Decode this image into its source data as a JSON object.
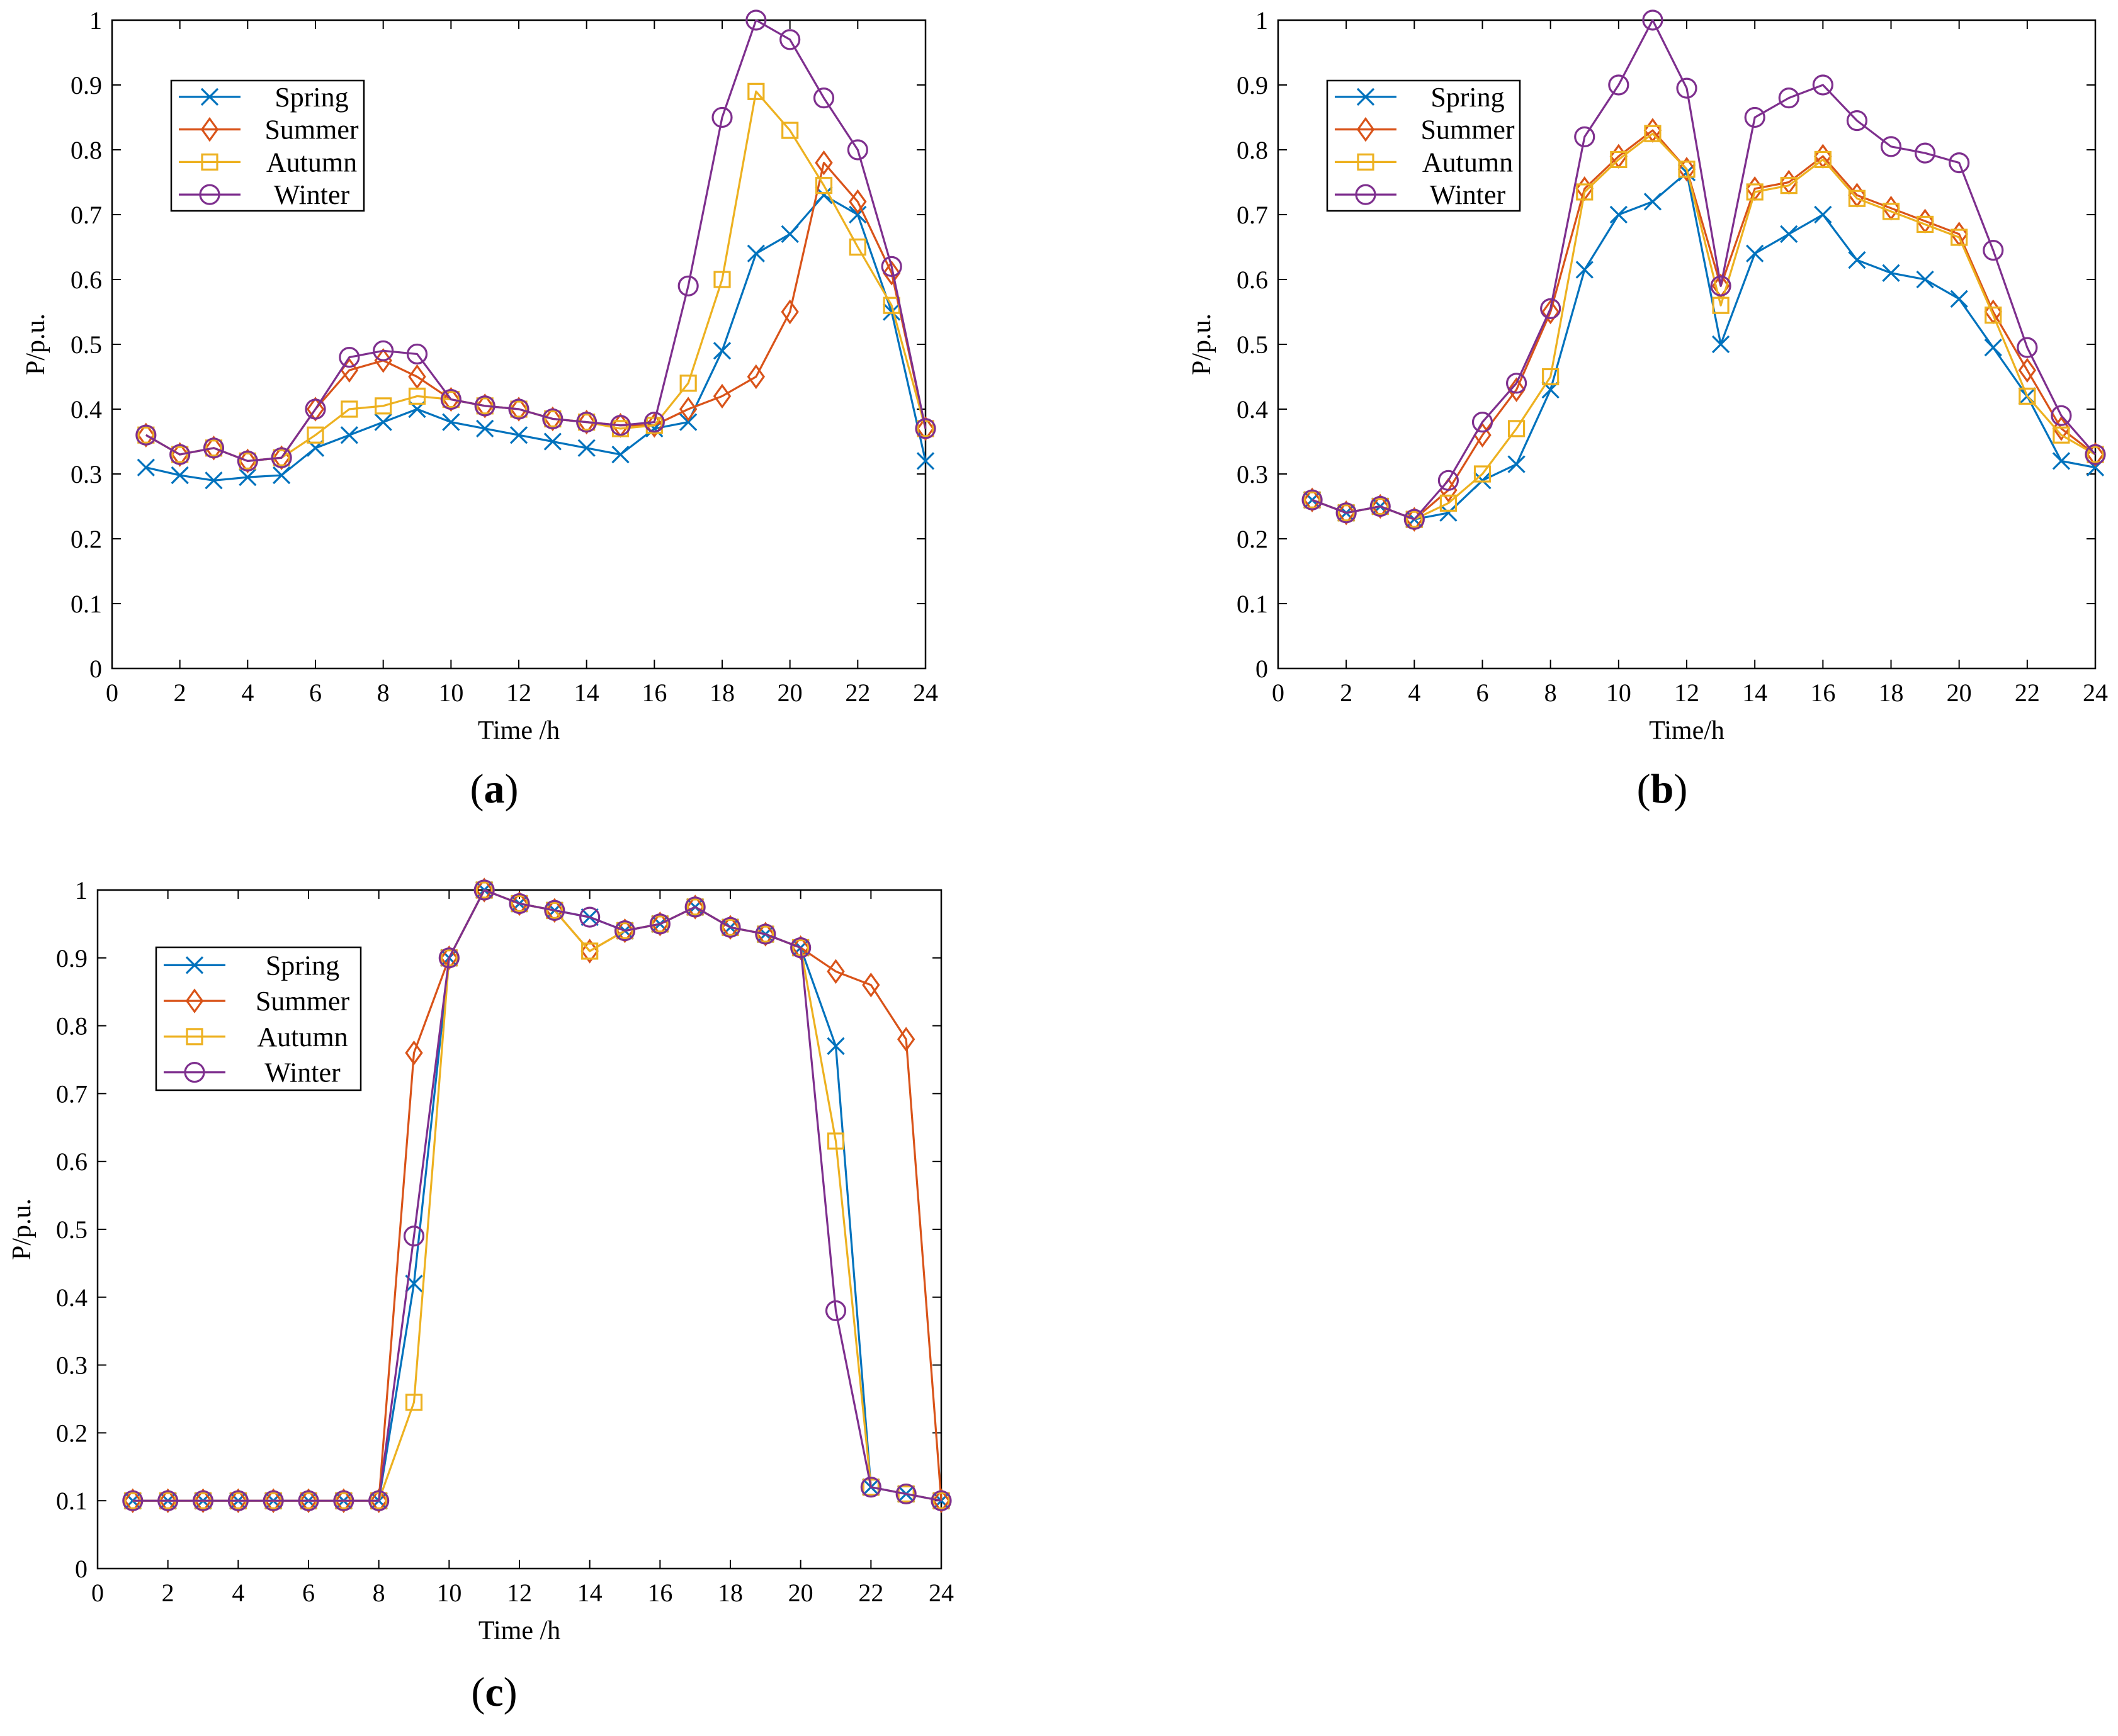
{
  "chart_data": [
    {
      "panel": "a",
      "type": "line",
      "panel_label": "a",
      "xlabel": "Time /h",
      "ylabel": "P/p.u.",
      "xlim": [
        0,
        24
      ],
      "ylim": [
        0,
        1
      ],
      "xticks": [
        "0",
        "2",
        "4",
        "6",
        "8",
        "10",
        "12",
        "14",
        "16",
        "18",
        "20",
        "22",
        "24"
      ],
      "yticks": [
        "0",
        "0.1",
        "0.2",
        "0.3",
        "0.4",
        "0.5",
        "0.6",
        "0.7",
        "0.8",
        "0.9",
        "1"
      ],
      "legend": [
        "Spring",
        "Summer",
        "Autumn",
        "Winter"
      ],
      "legend_position": "top-left",
      "x": [
        1,
        2,
        3,
        4,
        5,
        6,
        7,
        8,
        9,
        10,
        11,
        12,
        13,
        14,
        15,
        16,
        17,
        18,
        19,
        20,
        21,
        22,
        23,
        24
      ],
      "series": [
        {
          "name": "Spring",
          "color": "#0072BD",
          "marker": "x",
          "values": [
            0.31,
            0.298,
            0.29,
            0.295,
            0.298,
            0.34,
            0.36,
            0.38,
            0.4,
            0.38,
            0.37,
            0.36,
            0.35,
            0.34,
            0.33,
            0.37,
            0.38,
            0.49,
            0.64,
            0.67,
            0.73,
            0.7,
            0.55,
            0.32
          ]
        },
        {
          "name": "Summer",
          "color": "#D95319",
          "marker": "diamond",
          "values": [
            0.36,
            0.33,
            0.34,
            0.32,
            0.325,
            0.4,
            0.46,
            0.475,
            0.45,
            0.415,
            0.405,
            0.4,
            0.385,
            0.38,
            0.375,
            0.375,
            0.4,
            0.42,
            0.45,
            0.55,
            0.78,
            0.72,
            0.61,
            0.37
          ]
        },
        {
          "name": "Autumn",
          "color": "#EDB120",
          "marker": "square",
          "values": [
            0.36,
            0.33,
            0.34,
            0.32,
            0.325,
            0.36,
            0.4,
            0.405,
            0.42,
            0.415,
            0.405,
            0.4,
            0.385,
            0.38,
            0.37,
            0.375,
            0.44,
            0.6,
            0.89,
            0.83,
            0.745,
            0.65,
            0.56,
            0.37
          ]
        },
        {
          "name": "Winter",
          "color": "#7E2F8E",
          "marker": "circle",
          "values": [
            0.36,
            0.33,
            0.34,
            0.32,
            0.325,
            0.4,
            0.48,
            0.49,
            0.485,
            0.415,
            0.405,
            0.4,
            0.385,
            0.38,
            0.375,
            0.38,
            0.59,
            0.85,
            1.0,
            0.97,
            0.88,
            0.8,
            0.62,
            0.37
          ]
        }
      ]
    },
    {
      "panel": "b",
      "type": "line",
      "panel_label": "b",
      "xlabel": "Time/h",
      "ylabel": "P/p.u.",
      "xlim": [
        0,
        24
      ],
      "ylim": [
        0,
        1
      ],
      "xticks": [
        "0",
        "2",
        "4",
        "6",
        "8",
        "10",
        "12",
        "14",
        "16",
        "18",
        "20",
        "22",
        "24"
      ],
      "yticks": [
        "0",
        "0.1",
        "0.2",
        "0.3",
        "0.4",
        "0.5",
        "0.6",
        "0.7",
        "0.8",
        "0.9",
        "1"
      ],
      "legend": [
        "Spring",
        "Summer",
        "Autumn",
        "Winter"
      ],
      "legend_position": "top-left",
      "x": [
        1,
        2,
        3,
        4,
        5,
        6,
        7,
        8,
        9,
        10,
        11,
        12,
        13,
        14,
        15,
        16,
        17,
        18,
        19,
        20,
        21,
        22,
        23,
        24
      ],
      "series": [
        {
          "name": "Spring",
          "color": "#0072BD",
          "marker": "x",
          "values": [
            0.26,
            0.24,
            0.25,
            0.23,
            0.24,
            0.29,
            0.315,
            0.43,
            0.615,
            0.7,
            0.72,
            0.765,
            0.5,
            0.64,
            0.67,
            0.7,
            0.63,
            0.61,
            0.6,
            0.57,
            0.495,
            0.42,
            0.32,
            0.31
          ]
        },
        {
          "name": "Summer",
          "color": "#D95319",
          "marker": "diamond",
          "values": [
            0.26,
            0.24,
            0.25,
            0.23,
            0.275,
            0.36,
            0.43,
            0.55,
            0.74,
            0.79,
            0.83,
            0.77,
            0.59,
            0.74,
            0.75,
            0.79,
            0.73,
            0.71,
            0.69,
            0.67,
            0.55,
            0.46,
            0.37,
            0.33
          ]
        },
        {
          "name": "Autumn",
          "color": "#EDB120",
          "marker": "square",
          "values": [
            0.26,
            0.24,
            0.25,
            0.23,
            0.255,
            0.3,
            0.37,
            0.45,
            0.735,
            0.785,
            0.825,
            0.77,
            0.56,
            0.735,
            0.745,
            0.785,
            0.725,
            0.705,
            0.685,
            0.665,
            0.545,
            0.42,
            0.36,
            0.33
          ]
        },
        {
          "name": "Winter",
          "color": "#7E2F8E",
          "marker": "circle",
          "values": [
            0.26,
            0.24,
            0.25,
            0.23,
            0.29,
            0.38,
            0.44,
            0.555,
            0.82,
            0.9,
            1.0,
            0.895,
            0.59,
            0.85,
            0.88,
            0.9,
            0.845,
            0.805,
            0.795,
            0.78,
            0.645,
            0.495,
            0.39,
            0.33
          ]
        }
      ]
    },
    {
      "panel": "c",
      "type": "line",
      "panel_label": "c",
      "xlabel": "Time /h",
      "ylabel": "P/p.u.",
      "xlim": [
        0,
        24
      ],
      "ylim": [
        0,
        1
      ],
      "xticks": [
        "0",
        "2",
        "4",
        "6",
        "8",
        "10",
        "12",
        "14",
        "16",
        "18",
        "20",
        "22",
        "24"
      ],
      "yticks": [
        "0",
        "0.1",
        "0.2",
        "0.3",
        "0.4",
        "0.5",
        "0.6",
        "0.7",
        "0.8",
        "0.9",
        "1"
      ],
      "legend": [
        "Spring",
        "Summer",
        "Autumn",
        "Winter"
      ],
      "legend_position": "top-left",
      "x": [
        1,
        2,
        3,
        4,
        5,
        6,
        7,
        8,
        9,
        10,
        11,
        12,
        13,
        14,
        15,
        16,
        17,
        18,
        19,
        20,
        21,
        22,
        23,
        24
      ],
      "series": [
        {
          "name": "Spring",
          "color": "#0072BD",
          "marker": "x",
          "values": [
            0.1,
            0.1,
            0.1,
            0.1,
            0.1,
            0.1,
            0.1,
            0.1,
            0.42,
            0.9,
            1.0,
            0.98,
            0.97,
            0.96,
            0.94,
            0.95,
            0.975,
            0.945,
            0.935,
            0.915,
            0.77,
            0.12,
            0.11,
            0.1
          ]
        },
        {
          "name": "Summer",
          "color": "#D95319",
          "marker": "diamond",
          "values": [
            0.1,
            0.1,
            0.1,
            0.1,
            0.1,
            0.1,
            0.1,
            0.1,
            0.76,
            0.9,
            1.0,
            0.98,
            0.97,
            0.91,
            0.94,
            0.95,
            0.975,
            0.945,
            0.935,
            0.915,
            0.88,
            0.86,
            0.78,
            0.1
          ]
        },
        {
          "name": "Autumn",
          "color": "#EDB120",
          "marker": "square",
          "values": [
            0.1,
            0.1,
            0.1,
            0.1,
            0.1,
            0.1,
            0.1,
            0.1,
            0.245,
            0.9,
            1.0,
            0.98,
            0.97,
            0.91,
            0.94,
            0.95,
            0.975,
            0.945,
            0.935,
            0.915,
            0.63,
            0.12,
            0.11,
            0.1
          ]
        },
        {
          "name": "Winter",
          "color": "#7E2F8E",
          "marker": "circle",
          "values": [
            0.1,
            0.1,
            0.1,
            0.1,
            0.1,
            0.1,
            0.1,
            0.1,
            0.49,
            0.9,
            1.0,
            0.98,
            0.97,
            0.96,
            0.94,
            0.95,
            0.975,
            0.945,
            0.935,
            0.915,
            0.38,
            0.12,
            0.11,
            0.1
          ]
        }
      ]
    }
  ]
}
